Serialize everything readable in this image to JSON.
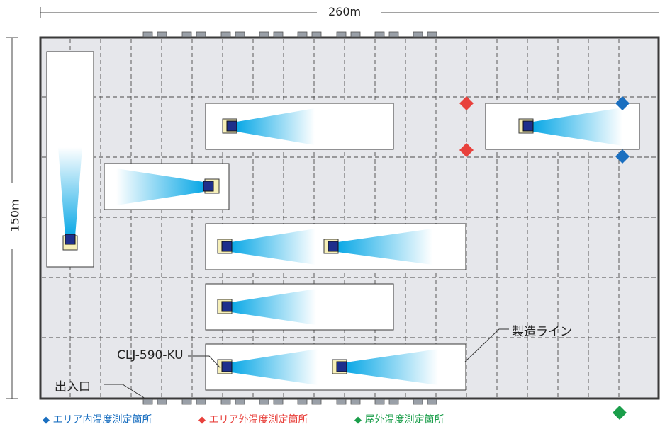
{
  "dimensions": {
    "width_label": "260m",
    "height_label": "150m"
  },
  "labels": {
    "production_line": "製造ライン",
    "model": "CLJ-590-KU",
    "entrance": "出入口"
  },
  "legend": {
    "inside": {
      "text": "エリア内温度測定箇所",
      "color": "#1a6fc0",
      "icon": "blue-diamond"
    },
    "outside": {
      "text": "エリア外温度測定箇所",
      "color": "#e8413c",
      "icon": "red-diamond"
    },
    "outdoor": {
      "text": "屋外温度測定箇所",
      "color": "#1a9e4a",
      "icon": "green-diamond"
    }
  }
}
